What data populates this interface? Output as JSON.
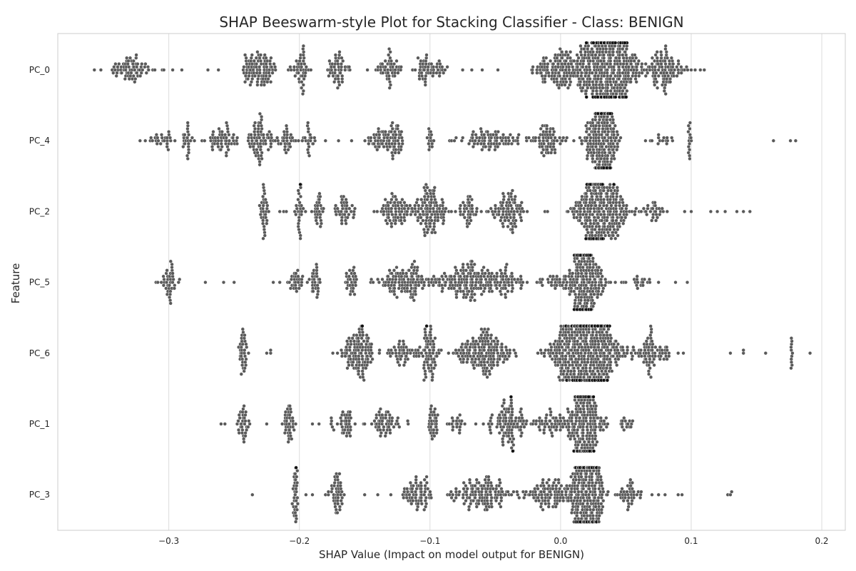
{
  "chart_data": {
    "type": "scatter",
    "subtype": "beeswarm",
    "title": "SHAP Beeswarm-style Plot for Stacking Classifier - Class: BENIGN",
    "xlabel": "SHAP Value (Impact on model output for BENIGN)",
    "ylabel": "Feature",
    "xlim": [
      -0.385,
      0.218
    ],
    "xticks": [
      -0.3,
      -0.2,
      -0.1,
      0.0,
      0.1,
      0.2
    ],
    "xtick_labels": [
      "−0.3",
      "−0.2",
      "−0.1",
      "0.0",
      "0.1",
      "0.2"
    ],
    "grid": true,
    "point_color": "#595959",
    "point_edge_color": "#ffffff",
    "features": [
      "PC_0",
      "PC_4",
      "PC_2",
      "PC_5",
      "PC_6",
      "PC_1",
      "PC_3"
    ],
    "series": [
      {
        "feature": "PC_0",
        "clusters": [
          {
            "center": -0.33,
            "spread": 0.016,
            "n": 70
          },
          {
            "center": -0.237,
            "spread": 0.006,
            "n": 45
          },
          {
            "center": -0.226,
            "spread": 0.006,
            "n": 50
          },
          {
            "center": -0.2,
            "spread": 0.006,
            "n": 45
          },
          {
            "center": -0.17,
            "spread": 0.008,
            "n": 50
          },
          {
            "center": -0.13,
            "spread": 0.01,
            "n": 50
          },
          {
            "center": -0.1,
            "spread": 0.012,
            "n": 55
          },
          {
            "center": 0.0,
            "spread": 0.02,
            "n": 130
          },
          {
            "center": 0.035,
            "spread": 0.025,
            "n": 430
          },
          {
            "center": 0.08,
            "spread": 0.012,
            "n": 90
          }
        ],
        "outliers": [
          -0.357,
          -0.352,
          -0.305,
          -0.297,
          -0.27,
          -0.262,
          -0.29,
          -0.075,
          -0.068,
          -0.06,
          -0.048,
          0.1,
          0.103,
          0.107,
          0.11
        ]
      },
      {
        "feature": "PC_4",
        "clusters": [
          {
            "center": -0.305,
            "spread": 0.008,
            "n": 25
          },
          {
            "center": -0.285,
            "spread": 0.005,
            "n": 25
          },
          {
            "center": -0.258,
            "spread": 0.01,
            "n": 55
          },
          {
            "center": -0.23,
            "spread": 0.01,
            "n": 70
          },
          {
            "center": -0.21,
            "spread": 0.005,
            "n": 30
          },
          {
            "center": -0.195,
            "spread": 0.006,
            "n": 25
          },
          {
            "center": -0.14,
            "spread": 0.012,
            "n": 40
          },
          {
            "center": -0.128,
            "spread": 0.006,
            "n": 45
          },
          {
            "center": -0.1,
            "spread": 0.002,
            "n": 15
          },
          {
            "center": -0.055,
            "spread": 0.02,
            "n": 80
          },
          {
            "center": -0.01,
            "spread": 0.012,
            "n": 70
          },
          {
            "center": 0.032,
            "spread": 0.012,
            "n": 250
          },
          {
            "center": 0.08,
            "spread": 0.008,
            "n": 12
          },
          {
            "center": 0.099,
            "spread": 0.001,
            "n": 15
          }
        ],
        "outliers": [
          -0.322,
          -0.318,
          -0.18,
          -0.17,
          -0.16,
          -0.085,
          -0.08,
          0.065,
          0.07,
          0.075,
          0.163,
          0.176,
          0.18
        ]
      },
      {
        "feature": "PC_2",
        "clusters": [
          {
            "center": -0.227,
            "spread": 0.003,
            "n": 35
          },
          {
            "center": -0.2,
            "spread": 0.003,
            "n": 30
          },
          {
            "center": -0.185,
            "spread": 0.003,
            "n": 30
          },
          {
            "center": -0.165,
            "spread": 0.008,
            "n": 40
          },
          {
            "center": -0.125,
            "spread": 0.015,
            "n": 80
          },
          {
            "center": -0.1,
            "spread": 0.012,
            "n": 110
          },
          {
            "center": -0.07,
            "spread": 0.008,
            "n": 40
          },
          {
            "center": -0.04,
            "spread": 0.01,
            "n": 90
          },
          {
            "center": 0.03,
            "spread": 0.018,
            "n": 330
          },
          {
            "center": 0.07,
            "spread": 0.012,
            "n": 30
          }
        ],
        "outliers": [
          -0.215,
          -0.212,
          -0.21,
          0.115,
          0.12,
          0.126,
          0.135,
          0.14,
          0.145,
          -0.012,
          -0.01,
          0.095,
          0.1
        ]
      },
      {
        "feature": "PC_5",
        "clusters": [
          {
            "center": -0.3,
            "spread": 0.006,
            "n": 40
          },
          {
            "center": -0.203,
            "spread": 0.005,
            "n": 30
          },
          {
            "center": -0.188,
            "spread": 0.004,
            "n": 30
          },
          {
            "center": -0.16,
            "spread": 0.006,
            "n": 30
          },
          {
            "center": -0.12,
            "spread": 0.02,
            "n": 120
          },
          {
            "center": -0.07,
            "spread": 0.025,
            "n": 170
          },
          {
            "center": -0.04,
            "spread": 0.012,
            "n": 40
          },
          {
            "center": 0.0,
            "spread": 0.015,
            "n": 40
          },
          {
            "center": 0.02,
            "spread": 0.012,
            "n": 240
          },
          {
            "center": 0.055,
            "spread": 0.01,
            "n": 20
          }
        ],
        "outliers": [
          -0.272,
          -0.258,
          -0.25,
          -0.22,
          -0.215,
          0.068,
          0.075,
          0.088,
          0.097
        ]
      },
      {
        "feature": "PC_6",
        "clusters": [
          {
            "center": -0.243,
            "spread": 0.003,
            "n": 35
          },
          {
            "center": -0.155,
            "spread": 0.012,
            "n": 120
          },
          {
            "center": -0.12,
            "spread": 0.012,
            "n": 50
          },
          {
            "center": -0.1,
            "spread": 0.006,
            "n": 70
          },
          {
            "center": -0.06,
            "spread": 0.02,
            "n": 170
          },
          {
            "center": 0.02,
            "spread": 0.025,
            "n": 560
          },
          {
            "center": 0.07,
            "spread": 0.01,
            "n": 70
          },
          {
            "center": 0.177,
            "spread": 0.001,
            "n": 12
          }
        ],
        "outliers": [
          -0.225,
          -0.222,
          -0.222,
          0.13,
          0.14,
          0.14,
          0.157,
          0.191,
          0.09,
          0.094
        ]
      },
      {
        "feature": "PC_1",
        "clusters": [
          {
            "center": -0.243,
            "spread": 0.004,
            "n": 35
          },
          {
            "center": -0.208,
            "spread": 0.004,
            "n": 40
          },
          {
            "center": -0.165,
            "spread": 0.008,
            "n": 40
          },
          {
            "center": -0.135,
            "spread": 0.012,
            "n": 55
          },
          {
            "center": -0.098,
            "spread": 0.004,
            "n": 35
          },
          {
            "center": -0.08,
            "spread": 0.006,
            "n": 20
          },
          {
            "center": -0.04,
            "spread": 0.015,
            "n": 110
          },
          {
            "center": -0.01,
            "spread": 0.01,
            "n": 40
          },
          {
            "center": 0.018,
            "spread": 0.012,
            "n": 300
          },
          {
            "center": 0.05,
            "spread": 0.005,
            "n": 15
          }
        ],
        "outliers": [
          -0.26,
          -0.257,
          -0.225,
          -0.19,
          -0.185,
          -0.15
        ]
      },
      {
        "feature": "PC_3",
        "clusters": [
          {
            "center": -0.203,
            "spread": 0.002,
            "n": 35
          },
          {
            "center": -0.172,
            "spread": 0.005,
            "n": 45
          },
          {
            "center": -0.11,
            "spread": 0.01,
            "n": 70
          },
          {
            "center": -0.06,
            "spread": 0.02,
            "n": 130
          },
          {
            "center": -0.01,
            "spread": 0.015,
            "n": 90
          },
          {
            "center": 0.02,
            "spread": 0.012,
            "n": 330
          },
          {
            "center": 0.053,
            "spread": 0.008,
            "n": 40
          }
        ],
        "outliers": [
          -0.236,
          -0.195,
          -0.19,
          -0.18,
          -0.15,
          -0.14,
          -0.13,
          0.07,
          0.075,
          0.08,
          0.09,
          0.093,
          0.128,
          0.13,
          0.131
        ]
      }
    ]
  }
}
